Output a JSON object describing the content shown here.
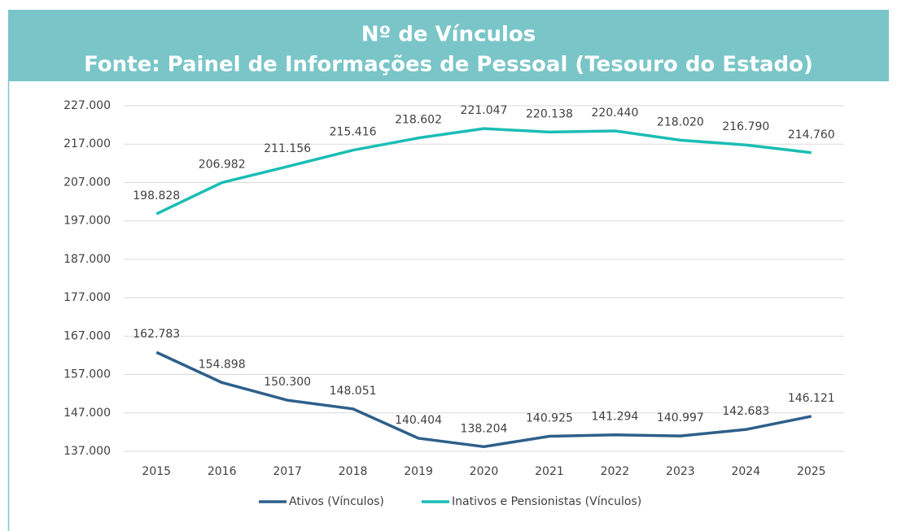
{
  "chart_data": {
    "type": "line",
    "title": "Nº de Vínculos",
    "subtitle": "Fonte: Painel de Informações de Pessoal (Tesouro do Estado)",
    "categories": [
      "2015",
      "2016",
      "2017",
      "2018",
      "2019",
      "2020",
      "2021",
      "2022",
      "2023",
      "2024",
      "2025"
    ],
    "series": [
      {
        "name": "Ativos (Vínculos)",
        "color": "#2e5f8a",
        "values": [
          162783,
          154898,
          150300,
          148051,
          140404,
          138204,
          140925,
          141294,
          140997,
          142683,
          146121
        ],
        "value_labels": [
          "162.783",
          "154.898",
          "150.300",
          "148.051",
          "140.404",
          "138.204",
          "140.925",
          "141.294",
          "140.997",
          "142.683",
          "146.121"
        ]
      },
      {
        "name": "Inativos e Pensionistas (Vínculos)",
        "color": "#1bbdb5",
        "values": [
          198828,
          206982,
          211156,
          215416,
          218602,
          221047,
          220138,
          220440,
          218020,
          216790,
          214760
        ],
        "value_labels": [
          "198.828",
          "206.982",
          "211.156",
          "215.416",
          "218.602",
          "221.047",
          "220.138",
          "220.440",
          "218.020",
          "216.790",
          "214.760"
        ]
      }
    ],
    "ylim": [
      137000,
      227000
    ],
    "yticks": [
      {
        "value": 137000,
        "label": "137.000"
      },
      {
        "value": 147000,
        "label": "147.000"
      },
      {
        "value": 157000,
        "label": "157.000"
      },
      {
        "value": 167000,
        "label": "167.000"
      },
      {
        "value": 177000,
        "label": "177.000"
      },
      {
        "value": 187000,
        "label": "187.000"
      },
      {
        "value": 197000,
        "label": "197.000"
      },
      {
        "value": 207000,
        "label": "207.000"
      },
      {
        "value": 217000,
        "label": "217.000"
      },
      {
        "value": 227000,
        "label": "227.000"
      }
    ],
    "grid": true,
    "legend": "bottom"
  }
}
